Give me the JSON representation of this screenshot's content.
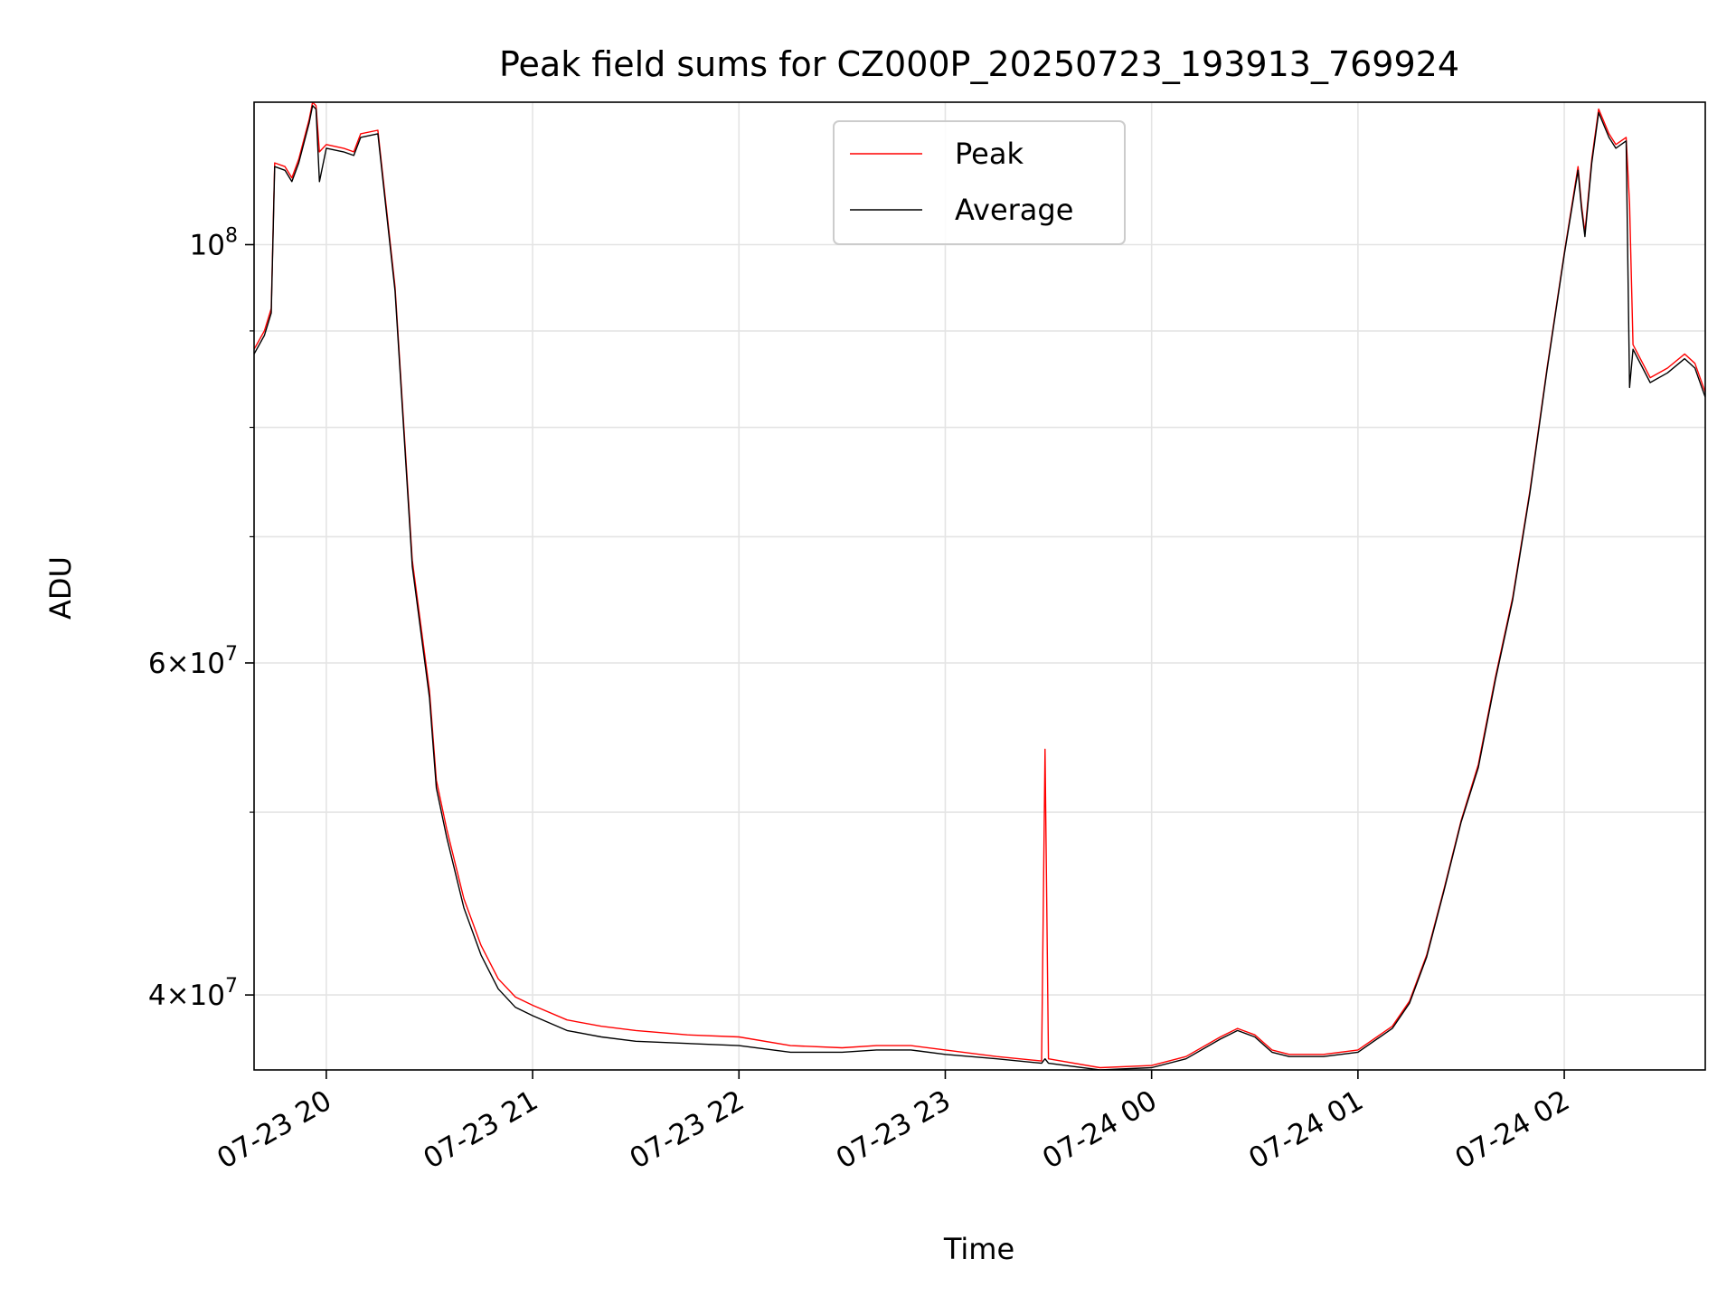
{
  "chart_data": {
    "type": "line",
    "title": "Peak field sums for CZ000P_20250723_193913_769924",
    "xlabel": "Time",
    "ylabel": "ADU",
    "y_scale": "log",
    "ylim": [
      36500000,
      119000000
    ],
    "xlim": [
      "2025-07-23 19:39",
      "2025-07-24 02:41"
    ],
    "x_ticks": [
      {
        "value": "2025-07-23 20:00",
        "label": "07-23 20"
      },
      {
        "value": "2025-07-23 21:00",
        "label": "07-23 21"
      },
      {
        "value": "2025-07-23 22:00",
        "label": "07-23 22"
      },
      {
        "value": "2025-07-23 23:00",
        "label": "07-23 23"
      },
      {
        "value": "2025-07-24 00:00",
        "label": "07-24 00"
      },
      {
        "value": "2025-07-24 01:00",
        "label": "07-24 01"
      },
      {
        "value": "2025-07-24 02:00",
        "label": "07-24 02"
      }
    ],
    "y_ticks": [
      {
        "value": 40000000,
        "label": "4 × 10^7",
        "mantissa": "4",
        "exponent": "7"
      },
      {
        "value": 60000000,
        "label": "6 × 10^7",
        "mantissa": "6",
        "exponent": "7"
      },
      {
        "value": 100000000,
        "label": "10^8",
        "mantissa": "",
        "exponent": "8"
      }
    ],
    "y_minor_ticks": [
      50000000,
      70000000,
      80000000,
      90000000
    ],
    "grid": true,
    "legend_position": "top-center",
    "series": [
      {
        "name": "Peak",
        "color": "#ff0000",
        "x": [
          "2025-07-23 19:39",
          "2025-07-23 19:42",
          "2025-07-23 19:44",
          "2025-07-23 19:45",
          "2025-07-23 19:48",
          "2025-07-23 19:50",
          "2025-07-23 19:52",
          "2025-07-23 19:55",
          "2025-07-23 19:56",
          "2025-07-23 19:57",
          "2025-07-23 19:58",
          "2025-07-23 20:00",
          "2025-07-23 20:05",
          "2025-07-23 20:08",
          "2025-07-23 20:10",
          "2025-07-23 20:15",
          "2025-07-23 20:20",
          "2025-07-23 20:25",
          "2025-07-23 20:30",
          "2025-07-23 20:32",
          "2025-07-23 20:35",
          "2025-07-23 20:40",
          "2025-07-23 20:45",
          "2025-07-23 20:50",
          "2025-07-23 20:55",
          "2025-07-23 21:00",
          "2025-07-23 21:10",
          "2025-07-23 21:20",
          "2025-07-23 21:30",
          "2025-07-23 21:45",
          "2025-07-23 22:00",
          "2025-07-23 22:15",
          "2025-07-23 22:30",
          "2025-07-23 22:40",
          "2025-07-23 22:50",
          "2025-07-23 23:00",
          "2025-07-23 23:15",
          "2025-07-23 23:28",
          "2025-07-23 23:29",
          "2025-07-23 23:30",
          "2025-07-23 23:45",
          "2025-07-24 00:00",
          "2025-07-24 00:10",
          "2025-07-24 00:20",
          "2025-07-24 00:25",
          "2025-07-24 00:30",
          "2025-07-24 00:35",
          "2025-07-24 00:40",
          "2025-07-24 00:50",
          "2025-07-24 01:00",
          "2025-07-24 01:10",
          "2025-07-24 01:15",
          "2025-07-24 01:20",
          "2025-07-24 01:25",
          "2025-07-24 01:30",
          "2025-07-24 01:35",
          "2025-07-24 01:40",
          "2025-07-24 01:45",
          "2025-07-24 01:50",
          "2025-07-24 01:55",
          "2025-07-24 02:00",
          "2025-07-24 02:04",
          "2025-07-24 02:05",
          "2025-07-24 02:06",
          "2025-07-24 02:08",
          "2025-07-24 02:10",
          "2025-07-24 02:13",
          "2025-07-24 02:15",
          "2025-07-24 02:18",
          "2025-07-24 02:19",
          "2025-07-24 02:20",
          "2025-07-24 02:25",
          "2025-07-24 02:30",
          "2025-07-24 02:35",
          "2025-07-24 02:38",
          "2025-07-24 02:41"
        ],
        "y": [
          88000000,
          90000000,
          92500000,
          110500000,
          110000000,
          108500000,
          111000000,
          116500000,
          119000000,
          118500000,
          112000000,
          113000000,
          112500000,
          112000000,
          114500000,
          115000000,
          95000000,
          68000000,
          58000000,
          52000000,
          49000000,
          45000000,
          42500000,
          40800000,
          39900000,
          39500000,
          38800000,
          38500000,
          38300000,
          38100000,
          38000000,
          37600000,
          37500000,
          37600000,
          37600000,
          37400000,
          37100000,
          36900000,
          54000000,
          37000000,
          36600000,
          36700000,
          37100000,
          38000000,
          38400000,
          38100000,
          37400000,
          37200000,
          37200000,
          37400000,
          38500000,
          39700000,
          42000000,
          45500000,
          49500000,
          53000000,
          59000000,
          65000000,
          74000000,
          86000000,
          99000000,
          110000000,
          105000000,
          101500000,
          111000000,
          118000000,
          114500000,
          113000000,
          114000000,
          105000000,
          88500000,
          85000000,
          86000000,
          87500000,
          86500000,
          83500000
        ]
      },
      {
        "name": "Average",
        "color": "#000000",
        "x": [
          "2025-07-23 19:39",
          "2025-07-23 19:42",
          "2025-07-23 19:44",
          "2025-07-23 19:45",
          "2025-07-23 19:48",
          "2025-07-23 19:50",
          "2025-07-23 19:52",
          "2025-07-23 19:55",
          "2025-07-23 19:56",
          "2025-07-23 19:57",
          "2025-07-23 19:58",
          "2025-07-23 20:00",
          "2025-07-23 20:05",
          "2025-07-23 20:08",
          "2025-07-23 20:10",
          "2025-07-23 20:15",
          "2025-07-23 20:20",
          "2025-07-23 20:25",
          "2025-07-23 20:30",
          "2025-07-23 20:32",
          "2025-07-23 20:35",
          "2025-07-23 20:40",
          "2025-07-23 20:45",
          "2025-07-23 20:50",
          "2025-07-23 20:55",
          "2025-07-23 21:00",
          "2025-07-23 21:10",
          "2025-07-23 21:20",
          "2025-07-23 21:30",
          "2025-07-23 21:45",
          "2025-07-23 22:00",
          "2025-07-23 22:15",
          "2025-07-23 22:30",
          "2025-07-23 22:40",
          "2025-07-23 22:50",
          "2025-07-23 23:00",
          "2025-07-23 23:15",
          "2025-07-23 23:28",
          "2025-07-23 23:29",
          "2025-07-23 23:30",
          "2025-07-23 23:45",
          "2025-07-24 00:00",
          "2025-07-24 00:10",
          "2025-07-24 00:20",
          "2025-07-24 00:25",
          "2025-07-24 00:30",
          "2025-07-24 00:35",
          "2025-07-24 00:40",
          "2025-07-24 00:50",
          "2025-07-24 01:00",
          "2025-07-24 01:10",
          "2025-07-24 01:15",
          "2025-07-24 01:20",
          "2025-07-24 01:25",
          "2025-07-24 01:30",
          "2025-07-24 01:35",
          "2025-07-24 01:40",
          "2025-07-24 01:45",
          "2025-07-24 01:50",
          "2025-07-24 01:55",
          "2025-07-24 02:00",
          "2025-07-24 02:04",
          "2025-07-24 02:05",
          "2025-07-24 02:06",
          "2025-07-24 02:08",
          "2025-07-24 02:10",
          "2025-07-24 02:13",
          "2025-07-24 02:15",
          "2025-07-24 02:18",
          "2025-07-24 02:19",
          "2025-07-24 02:20",
          "2025-07-24 02:25",
          "2025-07-24 02:30",
          "2025-07-24 02:35",
          "2025-07-24 02:38",
          "2025-07-24 02:41"
        ],
        "y": [
          87500000,
          89500000,
          92000000,
          110000000,
          109500000,
          108000000,
          110500000,
          116000000,
          118500000,
          118000000,
          108000000,
          112500000,
          112000000,
          111500000,
          114000000,
          114500000,
          94500000,
          67500000,
          57500000,
          51500000,
          48500000,
          44500000,
          42000000,
          40300000,
          39400000,
          39000000,
          38300000,
          38000000,
          37800000,
          37700000,
          37600000,
          37300000,
          37300000,
          37400000,
          37400000,
          37200000,
          37000000,
          36800000,
          37000000,
          36800000,
          36500000,
          36600000,
          37000000,
          37900000,
          38300000,
          38000000,
          37300000,
          37100000,
          37100000,
          37300000,
          38400000,
          39600000,
          41900000,
          45400000,
          49400000,
          52800000,
          58800000,
          64800000,
          73800000,
          85800000,
          98800000,
          109500000,
          104500000,
          101000000,
          110500000,
          117500000,
          114000000,
          112500000,
          113500000,
          84000000,
          88000000,
          84500000,
          85500000,
          87000000,
          86000000,
          83000000
        ]
      }
    ]
  }
}
